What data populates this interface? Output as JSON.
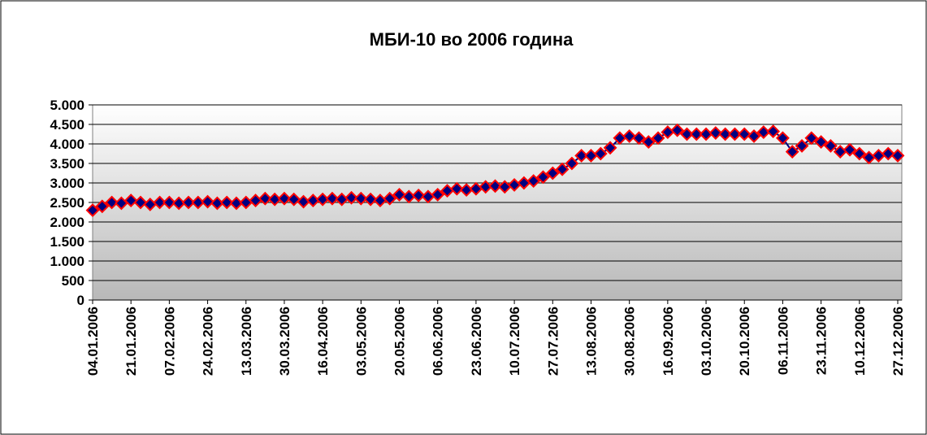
{
  "chart_data": {
    "type": "line",
    "title": "МБИ-10 во 2006 година",
    "categories": [
      "04.01.2006",
      null,
      null,
      null,
      "21.01.2006",
      null,
      null,
      null,
      "07.02.2006",
      null,
      null,
      null,
      "24.02.2006",
      null,
      null,
      null,
      "13.03.2006",
      null,
      null,
      null,
      "30.03.2006",
      null,
      null,
      null,
      "16.04.2006",
      null,
      null,
      null,
      "03.05.2006",
      null,
      null,
      null,
      "20.05.2006",
      null,
      null,
      null,
      "06.06.2006",
      null,
      null,
      null,
      "23.06.2006",
      null,
      null,
      null,
      "10.07.2006",
      null,
      null,
      null,
      "27.07.2006",
      null,
      null,
      null,
      "13.08.2006",
      null,
      null,
      null,
      "30.08.2006",
      null,
      null,
      null,
      "16.09.2006",
      null,
      null,
      null,
      "03.10.2006",
      null,
      null,
      null,
      "20.10.2006",
      null,
      null,
      null,
      "06.11.2006",
      null,
      null,
      null,
      "23.11.2006",
      null,
      null,
      null,
      "10.12.2006",
      null,
      null,
      null,
      "27.12.2006"
    ],
    "values": [
      2300,
      2400,
      2500,
      2480,
      2550,
      2500,
      2450,
      2500,
      2500,
      2480,
      2500,
      2500,
      2520,
      2480,
      2500,
      2480,
      2500,
      2550,
      2600,
      2580,
      2600,
      2580,
      2520,
      2550,
      2580,
      2600,
      2580,
      2620,
      2600,
      2580,
      2550,
      2600,
      2700,
      2650,
      2680,
      2650,
      2700,
      2800,
      2850,
      2820,
      2850,
      2900,
      2920,
      2900,
      2950,
      3000,
      3050,
      3150,
      3250,
      3350,
      3500,
      3700,
      3700,
      3750,
      3900,
      4150,
      4200,
      4150,
      4050,
      4150,
      4300,
      4350,
      4250,
      4250,
      4250,
      4280,
      4250,
      4250,
      4250,
      4200,
      4300,
      4320,
      4150,
      3800,
      3950,
      4150,
      4050,
      3950,
      3800,
      3850,
      3750,
      3650,
      3700,
      3750,
      3700
    ],
    "color": "#000080",
    "marker_edge_color": "#ff0000",
    "ylim": [
      0,
      5000
    ],
    "yticks": [
      0,
      500,
      {
        "value": 1000,
        "label": "1.000"
      },
      {
        "value": 1500,
        "label": "1.500"
      },
      {
        "value": 2000,
        "label": "2.000"
      },
      {
        "value": 2500,
        "label": "2.500"
      },
      {
        "value": 3000,
        "label": "3.000"
      },
      {
        "value": 3500,
        "label": "3.500"
      },
      {
        "value": 4000,
        "label": "4.000"
      },
      {
        "value": 4500,
        "label": "4.500"
      },
      {
        "value": 5000,
        "label": "5.000"
      }
    ],
    "grid": true
  }
}
